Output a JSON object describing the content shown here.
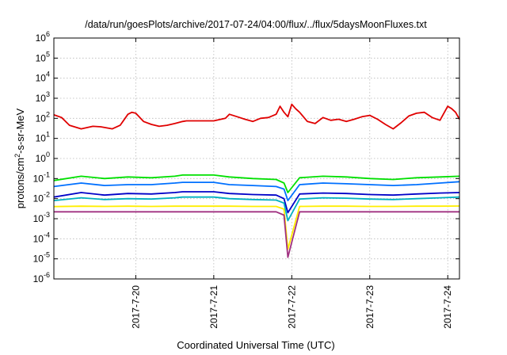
{
  "chart_data": {
    "type": "line",
    "title": "/data/run/goesPlots/archive/2017-07-24/04:00/flux/../flux/5daysMoonFluxes.txt",
    "xlabel": "Coordinated Universal Time (UTC)",
    "ylabel_parts": [
      "protons/cm",
      "2",
      "-s-sr-MeV"
    ],
    "y_scale": "log",
    "ylim": [
      1e-06,
      1000000.0
    ],
    "xlim": [
      -1.05,
      4.15
    ],
    "x_unit": "days relative to 2017-07-20",
    "x_ticks": [
      {
        "value": 0,
        "label": "2017-7-20"
      },
      {
        "value": 1,
        "label": "2017-7-21"
      },
      {
        "value": 2,
        "label": "2017-7-22"
      },
      {
        "value": 3,
        "label": "2017-7-23"
      },
      {
        "value": 4,
        "label": "2017-7-24"
      }
    ],
    "y_ticks": [
      {
        "exp": "-6",
        "value": 1e-06
      },
      {
        "exp": "-5",
        "value": 1e-05
      },
      {
        "exp": "-4",
        "value": 0.0001
      },
      {
        "exp": "-3",
        "value": 0.001
      },
      {
        "exp": "-2",
        "value": 0.01
      },
      {
        "exp": "-1",
        "value": 0.1
      },
      {
        "exp": "0",
        "value": 1
      },
      {
        "exp": "1",
        "value": 10
      },
      {
        "exp": "2",
        "value": 100
      },
      {
        "exp": "3",
        "value": 1000
      },
      {
        "exp": "4",
        "value": 10000
      },
      {
        "exp": "5",
        "value": 100000
      },
      {
        "exp": "6",
        "value": 1000000
      }
    ],
    "grid": true,
    "legend": "none",
    "series": [
      {
        "color": "#e00000",
        "x": [
          -1.05,
          -0.95,
          -0.85,
          -0.7,
          -0.55,
          -0.45,
          -0.3,
          -0.2,
          -0.1,
          -0.05,
          0.0,
          0.1,
          0.2,
          0.3,
          0.4,
          0.5,
          0.6,
          0.65,
          1.0,
          1.15,
          1.2,
          1.3,
          1.4,
          1.5,
          1.6,
          1.7,
          1.8,
          1.85,
          1.9,
          1.95,
          2.0,
          2.05,
          2.1,
          2.2,
          2.3,
          2.4,
          2.5,
          2.6,
          2.7,
          2.8,
          2.9,
          3.0,
          3.1,
          3.2,
          3.3,
          3.4,
          3.5,
          3.6,
          3.7,
          3.8,
          3.9,
          4.0,
          4.05,
          4.1,
          4.15
        ],
        "values": [
          150,
          110,
          45,
          30,
          40,
          38,
          30,
          45,
          160,
          200,
          180,
          70,
          50,
          40,
          45,
          55,
          70,
          75,
          75,
          100,
          160,
          120,
          90,
          70,
          100,
          110,
          160,
          400,
          200,
          120,
          500,
          300,
          200,
          70,
          55,
          110,
          80,
          90,
          70,
          90,
          120,
          140,
          90,
          50,
          30,
          60,
          130,
          180,
          200,
          110,
          80,
          400,
          300,
          200,
          90
        ]
      },
      {
        "color": "#00e000",
        "x": [
          -1.05,
          -0.7,
          -0.4,
          -0.1,
          0.2,
          0.5,
          0.6,
          1.0,
          1.2,
          1.5,
          1.8,
          1.9,
          1.95,
          2.1,
          2.4,
          2.7,
          3.0,
          3.3,
          3.6,
          3.9,
          4.15
        ],
        "values": [
          0.08,
          0.13,
          0.1,
          0.12,
          0.11,
          0.13,
          0.15,
          0.15,
          0.12,
          0.1,
          0.09,
          0.06,
          0.02,
          0.11,
          0.13,
          0.12,
          0.1,
          0.09,
          0.11,
          0.12,
          0.13
        ]
      },
      {
        "color": "#0070ff",
        "x": [
          -1.05,
          -0.7,
          -0.4,
          -0.1,
          0.2,
          0.5,
          0.6,
          1.0,
          1.2,
          1.5,
          1.8,
          1.9,
          1.95,
          2.1,
          2.4,
          2.7,
          3.0,
          3.3,
          3.6,
          3.9,
          4.15
        ],
        "values": [
          0.04,
          0.06,
          0.045,
          0.05,
          0.05,
          0.06,
          0.065,
          0.065,
          0.05,
          0.045,
          0.04,
          0.03,
          0.008,
          0.05,
          0.06,
          0.055,
          0.05,
          0.045,
          0.05,
          0.06,
          0.07
        ]
      },
      {
        "color": "#0000c8",
        "x": [
          -1.05,
          -0.7,
          -0.4,
          -0.1,
          0.2,
          0.5,
          0.6,
          1.0,
          1.2,
          1.5,
          1.8,
          1.9,
          1.95,
          2.1,
          2.4,
          2.7,
          3.0,
          3.3,
          3.6,
          3.9,
          4.15
        ],
        "values": [
          0.012,
          0.02,
          0.015,
          0.018,
          0.017,
          0.02,
          0.022,
          0.022,
          0.018,
          0.016,
          0.015,
          0.01,
          0.002,
          0.017,
          0.019,
          0.018,
          0.016,
          0.015,
          0.017,
          0.019,
          0.02
        ]
      },
      {
        "color": "#00b0c0",
        "x": [
          -1.05,
          -0.7,
          -0.4,
          -0.1,
          0.2,
          0.5,
          0.6,
          1.0,
          1.2,
          1.5,
          1.8,
          1.9,
          1.95,
          2.1,
          2.4,
          2.7,
          3.0,
          3.3,
          3.6,
          3.9,
          4.15
        ],
        "values": [
          0.008,
          0.011,
          0.009,
          0.01,
          0.0095,
          0.011,
          0.012,
          0.012,
          0.01,
          0.009,
          0.0085,
          0.006,
          0.0008,
          0.0095,
          0.011,
          0.0105,
          0.0095,
          0.009,
          0.01,
          0.011,
          0.012
        ]
      },
      {
        "color": "#ffee00",
        "x": [
          -1.05,
          -0.7,
          -0.4,
          -0.1,
          0.2,
          0.5,
          0.6,
          1.0,
          1.2,
          1.5,
          1.8,
          1.9,
          1.95,
          2.1,
          2.4,
          2.7,
          3.0,
          3.3,
          3.6,
          3.9,
          4.15
        ],
        "values": [
          0.004,
          0.0042,
          0.0041,
          0.0042,
          0.0041,
          0.0042,
          0.0042,
          0.0042,
          0.0042,
          0.0041,
          0.0041,
          0.003,
          3e-05,
          0.0041,
          0.0042,
          0.0042,
          0.0041,
          0.0041,
          0.0042,
          0.0042,
          0.0043
        ]
      },
      {
        "color": "#a03080",
        "x": [
          -1.05,
          -0.7,
          -0.4,
          -0.1,
          0.2,
          0.5,
          0.6,
          1.0,
          1.2,
          1.5,
          1.8,
          1.9,
          1.95,
          2.1,
          2.4,
          2.7,
          3.0,
          3.3,
          3.6,
          3.9,
          4.15
        ],
        "values": [
          0.0022,
          0.0022,
          0.0022,
          0.0022,
          0.0022,
          0.0022,
          0.0022,
          0.0022,
          0.0022,
          0.0022,
          0.0022,
          0.0015,
          1.2e-05,
          0.0022,
          0.0022,
          0.0022,
          0.0022,
          0.0022,
          0.0022,
          0.0022,
          0.0022
        ]
      }
    ]
  }
}
